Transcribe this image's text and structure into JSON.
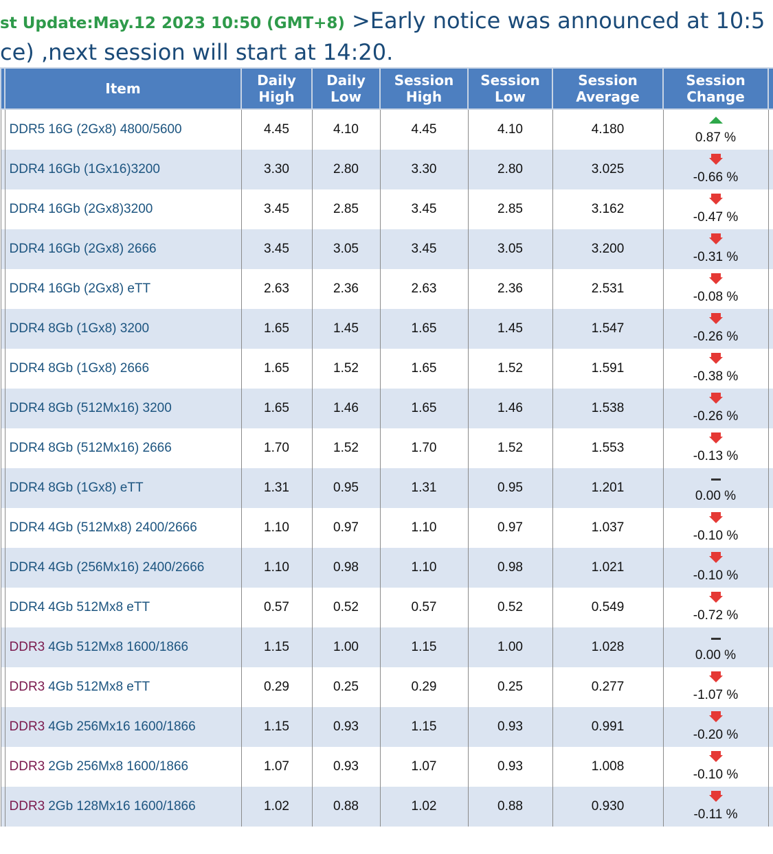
{
  "header": {
    "update": "st Update:May.12 2023 10:50 (GMT+8)",
    "notice": ">Early notice was announced at 10:5",
    "notice2": "ce) ,next session will start at 14:20."
  },
  "table": {
    "columns": [
      "Item",
      "Daily High",
      "Daily Low",
      "Session High",
      "Session Low",
      "Session Average",
      "Session Change"
    ],
    "rows": [
      {
        "type": "DDR5",
        "spec": "16G (2Gx8) 4800/5600",
        "cells": [
          "4.45",
          "4.10",
          "4.45",
          "4.10",
          "4.180"
        ],
        "change": "0.87 %",
        "direction": "up"
      },
      {
        "type": "DDR4",
        "spec": "16Gb (1Gx16)3200",
        "cells": [
          "3.30",
          "2.80",
          "3.30",
          "2.80",
          "3.025"
        ],
        "change": "-0.66 %",
        "direction": "down"
      },
      {
        "type": "DDR4",
        "spec": "16Gb (2Gx8)3200",
        "cells": [
          "3.45",
          "2.85",
          "3.45",
          "2.85",
          "3.162"
        ],
        "change": "-0.47 %",
        "direction": "down"
      },
      {
        "type": "DDR4",
        "spec": "16Gb (2Gx8) 2666",
        "cells": [
          "3.45",
          "3.05",
          "3.45",
          "3.05",
          "3.200"
        ],
        "change": "-0.31 %",
        "direction": "down"
      },
      {
        "type": "DDR4",
        "spec": "16Gb (2Gx8) eTT",
        "cells": [
          "2.63",
          "2.36",
          "2.63",
          "2.36",
          "2.531"
        ],
        "change": "-0.08 %",
        "direction": "down"
      },
      {
        "type": "DDR4",
        "spec": "8Gb (1Gx8) 3200",
        "cells": [
          "1.65",
          "1.45",
          "1.65",
          "1.45",
          "1.547"
        ],
        "change": "-0.26 %",
        "direction": "down"
      },
      {
        "type": "DDR4",
        "spec": "8Gb (1Gx8) 2666",
        "cells": [
          "1.65",
          "1.52",
          "1.65",
          "1.52",
          "1.591"
        ],
        "change": "-0.38 %",
        "direction": "down"
      },
      {
        "type": "DDR4",
        "spec": "8Gb (512Mx16) 3200",
        "cells": [
          "1.65",
          "1.46",
          "1.65",
          "1.46",
          "1.538"
        ],
        "change": "-0.26 %",
        "direction": "down"
      },
      {
        "type": "DDR4",
        "spec": "8Gb (512Mx16) 2666",
        "cells": [
          "1.70",
          "1.52",
          "1.70",
          "1.52",
          "1.553"
        ],
        "change": "-0.13 %",
        "direction": "down"
      },
      {
        "type": "DDR4",
        "spec": "8Gb (1Gx8) eTT",
        "cells": [
          "1.31",
          "0.95",
          "1.31",
          "0.95",
          "1.201"
        ],
        "change": "0.00 %",
        "direction": "flat"
      },
      {
        "type": "DDR4",
        "spec": "4Gb (512Mx8) 2400/2666",
        "cells": [
          "1.10",
          "0.97",
          "1.10",
          "0.97",
          "1.037"
        ],
        "change": "-0.10 %",
        "direction": "down"
      },
      {
        "type": "DDR4",
        "spec": "4Gb (256Mx16) 2400/2666",
        "cells": [
          "1.10",
          "0.98",
          "1.10",
          "0.98",
          "1.021"
        ],
        "change": "-0.10 %",
        "direction": "down"
      },
      {
        "type": "DDR4",
        "spec": "4Gb 512Mx8 eTT",
        "cells": [
          "0.57",
          "0.52",
          "0.57",
          "0.52",
          "0.549"
        ],
        "change": "-0.72 %",
        "direction": "down"
      },
      {
        "type": "DDR3",
        "spec": "4Gb 512Mx8 1600/1866",
        "cells": [
          "1.15",
          "1.00",
          "1.15",
          "1.00",
          "1.028"
        ],
        "change": "0.00 %",
        "direction": "flat"
      },
      {
        "type": "DDR3",
        "spec": "4Gb 512Mx8 eTT",
        "cells": [
          "0.29",
          "0.25",
          "0.29",
          "0.25",
          "0.277"
        ],
        "change": "-1.07 %",
        "direction": "down"
      },
      {
        "type": "DDR3",
        "spec": "4Gb 256Mx16 1600/1866",
        "cells": [
          "1.15",
          "0.93",
          "1.15",
          "0.93",
          "0.991"
        ],
        "change": "-0.20 %",
        "direction": "down"
      },
      {
        "type": "DDR3",
        "spec": "2Gb 256Mx8 1600/1866",
        "cells": [
          "1.07",
          "0.93",
          "1.07",
          "0.93",
          "1.008"
        ],
        "change": "-0.10 %",
        "direction": "down"
      },
      {
        "type": "DDR3",
        "spec": "2Gb 128Mx16 1600/1866",
        "cells": [
          "1.02",
          "0.88",
          "1.02",
          "0.88",
          "0.930"
        ],
        "change": "-0.11 %",
        "direction": "down"
      }
    ]
  }
}
